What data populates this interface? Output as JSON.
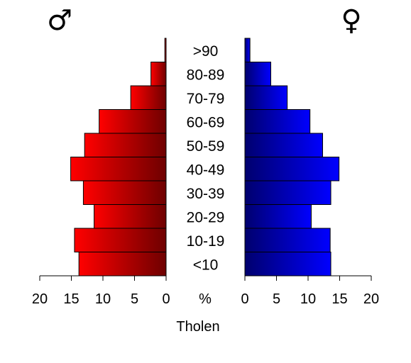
{
  "chart_data": {
    "type": "bar",
    "title": "",
    "xlabel": "Tholen",
    "unit_label": "%",
    "male_symbol": "♂",
    "female_symbol": "♀",
    "categories": [
      "<10",
      "10-19",
      "20-29",
      "30-39",
      "40-49",
      "50-59",
      "60-69",
      "70-79",
      "80-89",
      ">90"
    ],
    "series": [
      {
        "name": "",
        "side": "left",
        "values": [
          13.8,
          14.5,
          11.4,
          13.1,
          15.1,
          12.9,
          10.6,
          5.6,
          2.4,
          0.2
        ]
      },
      {
        "name": "",
        "side": "right",
        "values": [
          13.6,
          13.5,
          10.5,
          13.6,
          14.9,
          12.3,
          10.3,
          6.7,
          4.1,
          0.8
        ]
      }
    ],
    "xlim": [
      0,
      20
    ],
    "ticks": [
      0,
      5,
      10,
      15,
      20
    ],
    "colors": {
      "male_light": "#ff0000",
      "male_dark": "#6e0000",
      "female_light": "#0000ff",
      "female_dark": "#00006e",
      "outline": "#000000"
    }
  }
}
